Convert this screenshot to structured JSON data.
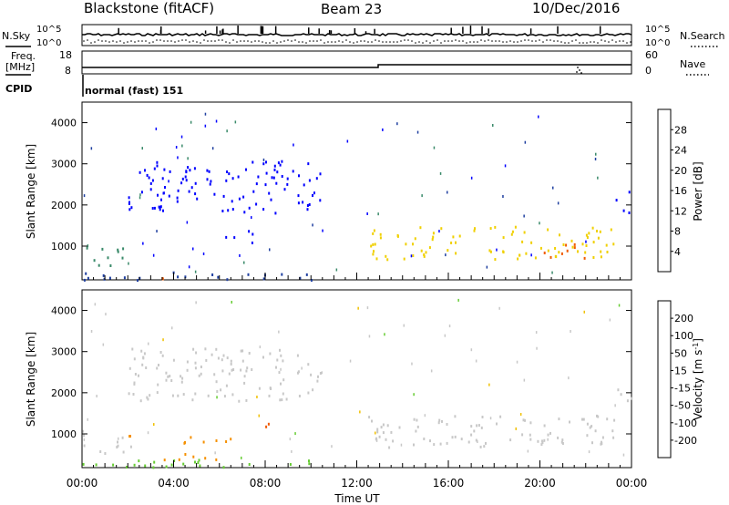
{
  "header": {
    "station": "Blackstone (fitACF)",
    "beam": "Beam 23",
    "date": "10/Dec/2016"
  },
  "noise_panel": {
    "left_label": "N.Sky",
    "right_label": "N.Search",
    "ticks": [
      "10^5",
      "10^0"
    ]
  },
  "freq_panel": {
    "left_label_line1": "Freq.",
    "left_label_line2": "[MHz]",
    "left_ticks": [
      "18",
      "8"
    ],
    "right_label": "Nave",
    "right_ticks": [
      "60",
      "0"
    ]
  },
  "cpid_panel": {
    "label": "CPID",
    "mode_text": "normal (fast) 151"
  },
  "colors": {
    "power_scale": [
      "#0000ff",
      "#1f3fa0",
      "#3a8a6a",
      "#5fbf3a",
      "#f0d000",
      "#f59000",
      "#f05a00",
      "#e01010"
    ],
    "velocity_scale": [
      "#e01010",
      "#f05a00",
      "#f59000",
      "#f0c000",
      "#c8c8c8",
      "#66cc33",
      "#2e8b57",
      "#1f3fa0",
      "#0000ff"
    ]
  },
  "chart_data": [
    {
      "type": "heatmap",
      "title": "",
      "xlabel": "Time UT",
      "ylabel": "Slant Range [km]",
      "x_tick_labels": [
        "00:00",
        "04:00",
        "08:00",
        "12:00",
        "16:00",
        "20:00",
        "00:00"
      ],
      "xlim_hours": [
        0,
        24
      ],
      "ylim_km": [
        180,
        4500
      ],
      "y_ticks": [
        1000,
        2000,
        3000,
        4000
      ],
      "colorbar": {
        "label": "Power [dB]",
        "ticks": [
          4,
          8,
          12,
          16,
          20,
          24,
          28
        ],
        "range": [
          0,
          30
        ]
      },
      "features": [
        {
          "t0": 0.0,
          "t1": 2.2,
          "r0": 550,
          "r1": 1000,
          "level": 2
        },
        {
          "t0": 0.0,
          "t1": 10.0,
          "r0": 200,
          "r1": 420,
          "level": 1
        },
        {
          "t0": 3.0,
          "t1": 4.0,
          "r0": 230,
          "r1": 400,
          "level": 6
        },
        {
          "t0": 2.0,
          "t1": 10.5,
          "r0": 1800,
          "r1": 3100,
          "level": 0
        },
        {
          "t0": 6.0,
          "t1": 7.5,
          "r0": 1100,
          "r1": 1400,
          "level": 0
        },
        {
          "t0": 12.5,
          "t1": 23.3,
          "r0": 700,
          "r1": 1500,
          "level": 4
        },
        {
          "t0": 20.0,
          "t1": 22.0,
          "r0": 700,
          "r1": 1100,
          "level": 6
        },
        {
          "t0": 23.3,
          "t1": 24.0,
          "r0": 1800,
          "r1": 2400,
          "level": 0
        }
      ]
    },
    {
      "type": "heatmap",
      "title": "",
      "xlabel": "Time UT",
      "ylabel": "Slant Range [km]",
      "x_tick_labels": [
        "00:00",
        "04:00",
        "08:00",
        "12:00",
        "16:00",
        "20:00",
        "00:00"
      ],
      "xlim_hours": [
        0,
        24
      ],
      "ylim_km": [
        180,
        4500
      ],
      "y_ticks": [
        1000,
        2000,
        3000,
        4000
      ],
      "colorbar": {
        "label": "Velocity [m s^-1]",
        "ticks": [
          "200",
          "100",
          "50",
          "15",
          "-15",
          "-50",
          "-100",
          "-200"
        ],
        "range": [
          -250,
          250
        ]
      },
      "features": [
        {
          "t0": 0.0,
          "t1": 2.2,
          "r0": 550,
          "r1": 1000,
          "v": 0
        },
        {
          "t0": 1.8,
          "t1": 2.5,
          "r0": 650,
          "r1": 1000,
          "v": -60
        },
        {
          "t0": 0.0,
          "t1": 10.0,
          "r0": 200,
          "r1": 420,
          "v": 30
        },
        {
          "t0": 3.0,
          "t1": 6.5,
          "r0": 380,
          "r1": 550,
          "v": -40
        },
        {
          "t0": 4.0,
          "t1": 7.5,
          "r0": 750,
          "r1": 950,
          "v": -70
        },
        {
          "t0": 7.8,
          "t1": 8.6,
          "r0": 1100,
          "r1": 1400,
          "v": -80
        },
        {
          "t0": 2.0,
          "t1": 10.5,
          "r0": 1800,
          "r1": 3100,
          "v": 0
        },
        {
          "t0": 12.5,
          "t1": 23.3,
          "r0": 700,
          "r1": 1500,
          "v": 0
        },
        {
          "t0": 23.3,
          "t1": 24.0,
          "r0": 1800,
          "r1": 2400,
          "v": 0
        }
      ]
    }
  ]
}
